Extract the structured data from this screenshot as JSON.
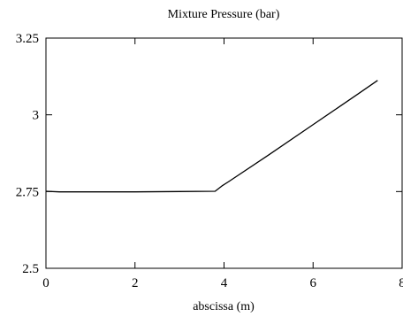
{
  "chart_data": {
    "type": "line",
    "title": "Mixture Pressure (bar)",
    "xlabel": "abscissa (m)",
    "ylabel": "",
    "xlim": [
      0,
      8
    ],
    "ylim": [
      2.5,
      3.25
    ],
    "xticks": [
      0,
      2,
      4,
      6,
      8
    ],
    "yticks": [
      2.5,
      2.75,
      3,
      3.25
    ],
    "xtick_labels": [
      "0",
      "2",
      "4",
      "6",
      "8"
    ],
    "ytick_labels": [
      "2.5",
      "2.75",
      "3",
      "3.25"
    ],
    "grid": false,
    "legend": "none",
    "series": [
      {
        "color": "#000000",
        "x": [
          0,
          0.3,
          1.0,
          2.0,
          3.0,
          3.8,
          3.95,
          4.1,
          5.0,
          6.0,
          7.0,
          7.45
        ],
        "y": [
          2.751,
          2.749,
          2.749,
          2.749,
          2.75,
          2.751,
          2.768,
          2.782,
          2.869,
          2.968,
          3.067,
          3.112
        ]
      }
    ]
  }
}
